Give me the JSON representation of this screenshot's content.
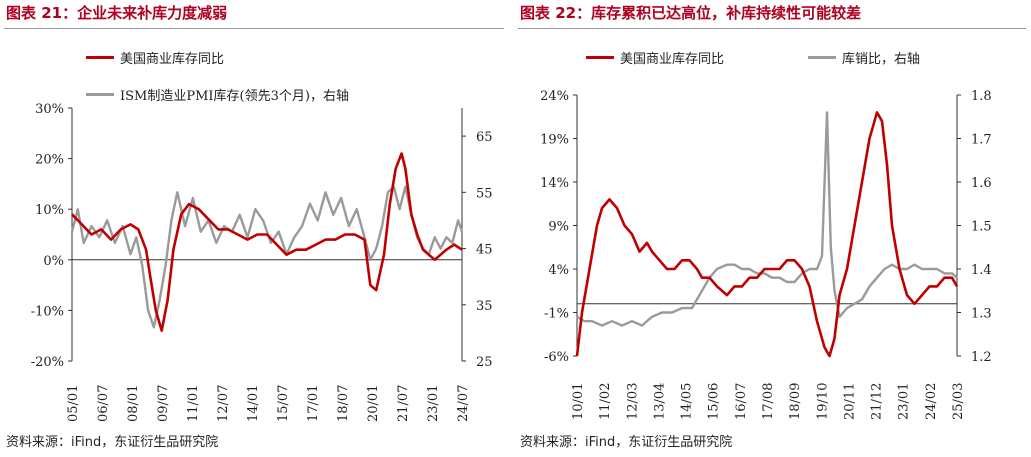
{
  "left_panel": {
    "title": "图表 21：企业未来补库力度减弱",
    "source": "资料来源：iFind，东证衍生品研究院"
  },
  "right_panel": {
    "title": "图表 22：库存累积已达高位，补库持续性可能较差",
    "source": "资料来源：iFind，东证衍生品研究院"
  },
  "colors": {
    "title": "#b00020",
    "primary_series": "#c00000",
    "secondary_series": "#9a9a9a"
  },
  "chart_data": [
    {
      "type": "line",
      "title": "图表 21：企业未来补库力度减弱",
      "categories": [
        "05/01",
        "06/07",
        "08/01",
        "09/07",
        "11/01",
        "12/07",
        "14/01",
        "15/07",
        "17/01",
        "18/07",
        "20/01",
        "21/07",
        "23/01",
        "24/07"
      ],
      "x_range": [
        2005.0,
        2025.0
      ],
      "y_left": {
        "ticks": [
          "30%",
          "20%",
          "10%",
          "0%",
          "-10%",
          "-20%"
        ],
        "range": [
          -20,
          30
        ]
      },
      "y_right": {
        "ticks": [
          "65",
          "55",
          "45",
          "35",
          "25"
        ],
        "range": [
          25,
          70
        ]
      },
      "series": [
        {
          "name": "美国商业库存同比",
          "axis": "left",
          "x": [
            2005.0,
            2005.5,
            2006.0,
            2006.5,
            2007.0,
            2007.5,
            2008.0,
            2008.4,
            2008.8,
            2009.0,
            2009.3,
            2009.6,
            2009.9,
            2010.2,
            2010.6,
            2011.0,
            2011.5,
            2012.0,
            2012.5,
            2013.0,
            2013.5,
            2014.0,
            2014.5,
            2015.0,
            2015.5,
            2016.0,
            2016.5,
            2017.0,
            2017.5,
            2018.0,
            2018.5,
            2019.0,
            2019.5,
            2020.0,
            2020.3,
            2020.6,
            2021.0,
            2021.3,
            2021.6,
            2021.9,
            2022.1,
            2022.4,
            2022.7,
            2023.0,
            2023.3,
            2023.6,
            2023.9,
            2024.2,
            2024.6,
            2025.0
          ],
          "values": [
            9,
            7,
            5,
            6,
            4,
            6,
            7,
            6,
            2,
            -3,
            -10,
            -14,
            -8,
            2,
            9,
            11,
            10,
            8,
            6,
            6,
            5,
            4,
            5,
            5,
            3,
            1,
            2,
            2,
            3,
            4,
            4,
            5,
            5,
            4,
            -5,
            -6,
            1,
            11,
            18,
            21,
            18,
            9,
            5,
            2,
            1,
            0,
            1,
            2,
            3,
            2
          ]
        },
        {
          "name": "ISM制造业PMI库存(领先3个月)，右轴",
          "axis": "right",
          "x": [
            2005.0,
            2005.3,
            2005.6,
            2006.0,
            2006.4,
            2006.8,
            2007.2,
            2007.6,
            2008.0,
            2008.3,
            2008.6,
            2008.9,
            2009.2,
            2009.5,
            2009.8,
            2010.1,
            2010.4,
            2010.8,
            2011.2,
            2011.6,
            2012.0,
            2012.4,
            2012.8,
            2013.2,
            2013.6,
            2014.0,
            2014.4,
            2014.8,
            2015.2,
            2015.6,
            2016.0,
            2016.4,
            2016.8,
            2017.2,
            2017.6,
            2018.0,
            2018.4,
            2018.8,
            2019.2,
            2019.6,
            2020.0,
            2020.3,
            2020.6,
            2020.9,
            2021.2,
            2021.5,
            2021.8,
            2022.1,
            2022.4,
            2022.7,
            2023.0,
            2023.3,
            2023.6,
            2023.9,
            2024.2,
            2024.5,
            2024.8,
            2025.0
          ],
          "values": [
            48,
            52,
            46,
            49,
            47,
            50,
            46,
            49,
            44,
            47,
            42,
            34,
            31,
            36,
            42,
            50,
            55,
            49,
            54,
            48,
            50,
            46,
            49,
            48,
            51,
            47,
            52,
            50,
            46,
            48,
            44,
            47,
            49,
            53,
            50,
            55,
            51,
            54,
            49,
            52,
            47,
            43,
            45,
            49,
            55,
            56,
            52,
            56,
            51,
            47,
            45,
            44,
            47,
            45,
            47,
            46,
            50,
            48
          ]
        }
      ]
    },
    {
      "type": "line",
      "title": "图表 22：库存累积已达高位，补库持续性可能较差",
      "categories": [
        "10/01",
        "11/02",
        "12/03",
        "13/04",
        "14/05",
        "15/06",
        "16/07",
        "17/08",
        "18/09",
        "19/10",
        "20/11",
        "21/12",
        "23/01",
        "24/02",
        "25/03"
      ],
      "x_range": [
        2010.0,
        2025.2
      ],
      "y_left": {
        "ticks": [
          "24%",
          "19%",
          "14%",
          "9%",
          "4%",
          "-1%",
          "-6%"
        ],
        "range": [
          -6,
          24
        ]
      },
      "y_right": {
        "ticks": [
          "1.8",
          "1.7",
          "1.6",
          "1.5",
          "1.4",
          "1.3",
          "1.2"
        ],
        "range": [
          1.2,
          1.8
        ]
      },
      "series": [
        {
          "name": "美国商业库存同比",
          "axis": "left",
          "x": [
            2010.0,
            2010.2,
            2010.5,
            2010.8,
            2011.0,
            2011.3,
            2011.6,
            2011.9,
            2012.2,
            2012.5,
            2012.8,
            2013.0,
            2013.3,
            2013.6,
            2013.9,
            2014.2,
            2014.5,
            2014.8,
            2015.0,
            2015.3,
            2015.6,
            2016.0,
            2016.3,
            2016.6,
            2016.9,
            2017.2,
            2017.5,
            2017.8,
            2018.1,
            2018.4,
            2018.7,
            2019.0,
            2019.3,
            2019.6,
            2019.9,
            2020.1,
            2020.3,
            2020.5,
            2020.8,
            2021.1,
            2021.4,
            2021.7,
            2022.0,
            2022.2,
            2022.4,
            2022.6,
            2022.9,
            2023.2,
            2023.5,
            2023.8,
            2024.1,
            2024.4,
            2024.7,
            2025.0,
            2025.2
          ],
          "values": [
            -6,
            -1,
            4,
            9,
            11,
            12,
            11,
            9,
            8,
            6,
            7,
            6,
            5,
            4,
            4,
            5,
            5,
            4,
            3,
            3,
            2,
            1,
            2,
            2,
            3,
            3,
            4,
            4,
            4,
            5,
            5,
            4,
            2,
            -2,
            -5,
            -6,
            -4,
            1,
            4,
            9,
            14,
            19,
            22,
            21,
            16,
            9,
            4,
            1,
            0,
            1,
            2,
            2,
            3,
            3,
            2
          ]
        },
        {
          "name": "库销比，右轴",
          "axis": "right",
          "x": [
            2010.0,
            2010.3,
            2010.6,
            2011.0,
            2011.4,
            2011.8,
            2012.2,
            2012.6,
            2013.0,
            2013.4,
            2013.8,
            2014.2,
            2014.6,
            2015.0,
            2015.3,
            2015.6,
            2016.0,
            2016.3,
            2016.6,
            2016.9,
            2017.2,
            2017.5,
            2017.8,
            2018.1,
            2018.4,
            2018.7,
            2019.0,
            2019.3,
            2019.6,
            2019.8,
            2020.0,
            2020.15,
            2020.3,
            2020.5,
            2020.8,
            2021.1,
            2021.4,
            2021.7,
            2022.0,
            2022.3,
            2022.6,
            2022.9,
            2023.2,
            2023.5,
            2023.8,
            2024.1,
            2024.4,
            2024.7,
            2025.0,
            2025.2
          ],
          "values": [
            1.29,
            1.28,
            1.28,
            1.27,
            1.28,
            1.27,
            1.28,
            1.27,
            1.29,
            1.3,
            1.3,
            1.31,
            1.31,
            1.35,
            1.38,
            1.4,
            1.41,
            1.41,
            1.4,
            1.4,
            1.39,
            1.39,
            1.38,
            1.38,
            1.37,
            1.37,
            1.39,
            1.4,
            1.4,
            1.43,
            1.76,
            1.45,
            1.35,
            1.29,
            1.31,
            1.32,
            1.33,
            1.36,
            1.38,
            1.4,
            1.41,
            1.4,
            1.4,
            1.41,
            1.4,
            1.4,
            1.4,
            1.39,
            1.39,
            1.38
          ]
        }
      ]
    }
  ]
}
